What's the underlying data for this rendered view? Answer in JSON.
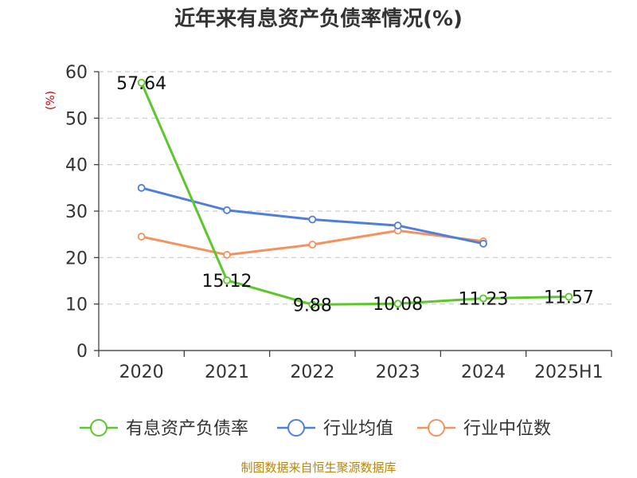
{
  "chart_data": {
    "type": "line",
    "title": "近年来有息资产负债率情况(%)",
    "ylabel": "(%)",
    "xlabel": "",
    "categories": [
      "2020",
      "2021",
      "2022",
      "2023",
      "2024",
      "2025H1"
    ],
    "ylim": [
      0,
      60
    ],
    "yticks": [
      0,
      10,
      20,
      30,
      40,
      50,
      60
    ],
    "grid": true,
    "legend_position": "bottom",
    "series": [
      {
        "name": "有息资产负债率",
        "color": "#5bc72a",
        "values": [
          57.64,
          15.12,
          9.88,
          10.08,
          11.23,
          11.57
        ],
        "labels": [
          "57.64",
          "15.12",
          "9.88",
          "10.08",
          "11.23",
          "11.57"
        ]
      },
      {
        "name": "行业均值",
        "color": "#4f7fdc",
        "values": [
          35.0,
          30.2,
          28.2,
          26.9,
          23.0,
          null
        ]
      },
      {
        "name": "行业中位数",
        "color": "#f4925e",
        "values": [
          24.5,
          20.6,
          22.8,
          25.8,
          23.5,
          null
        ]
      }
    ]
  },
  "source_note": "制图数据来自恒生聚源数据库"
}
